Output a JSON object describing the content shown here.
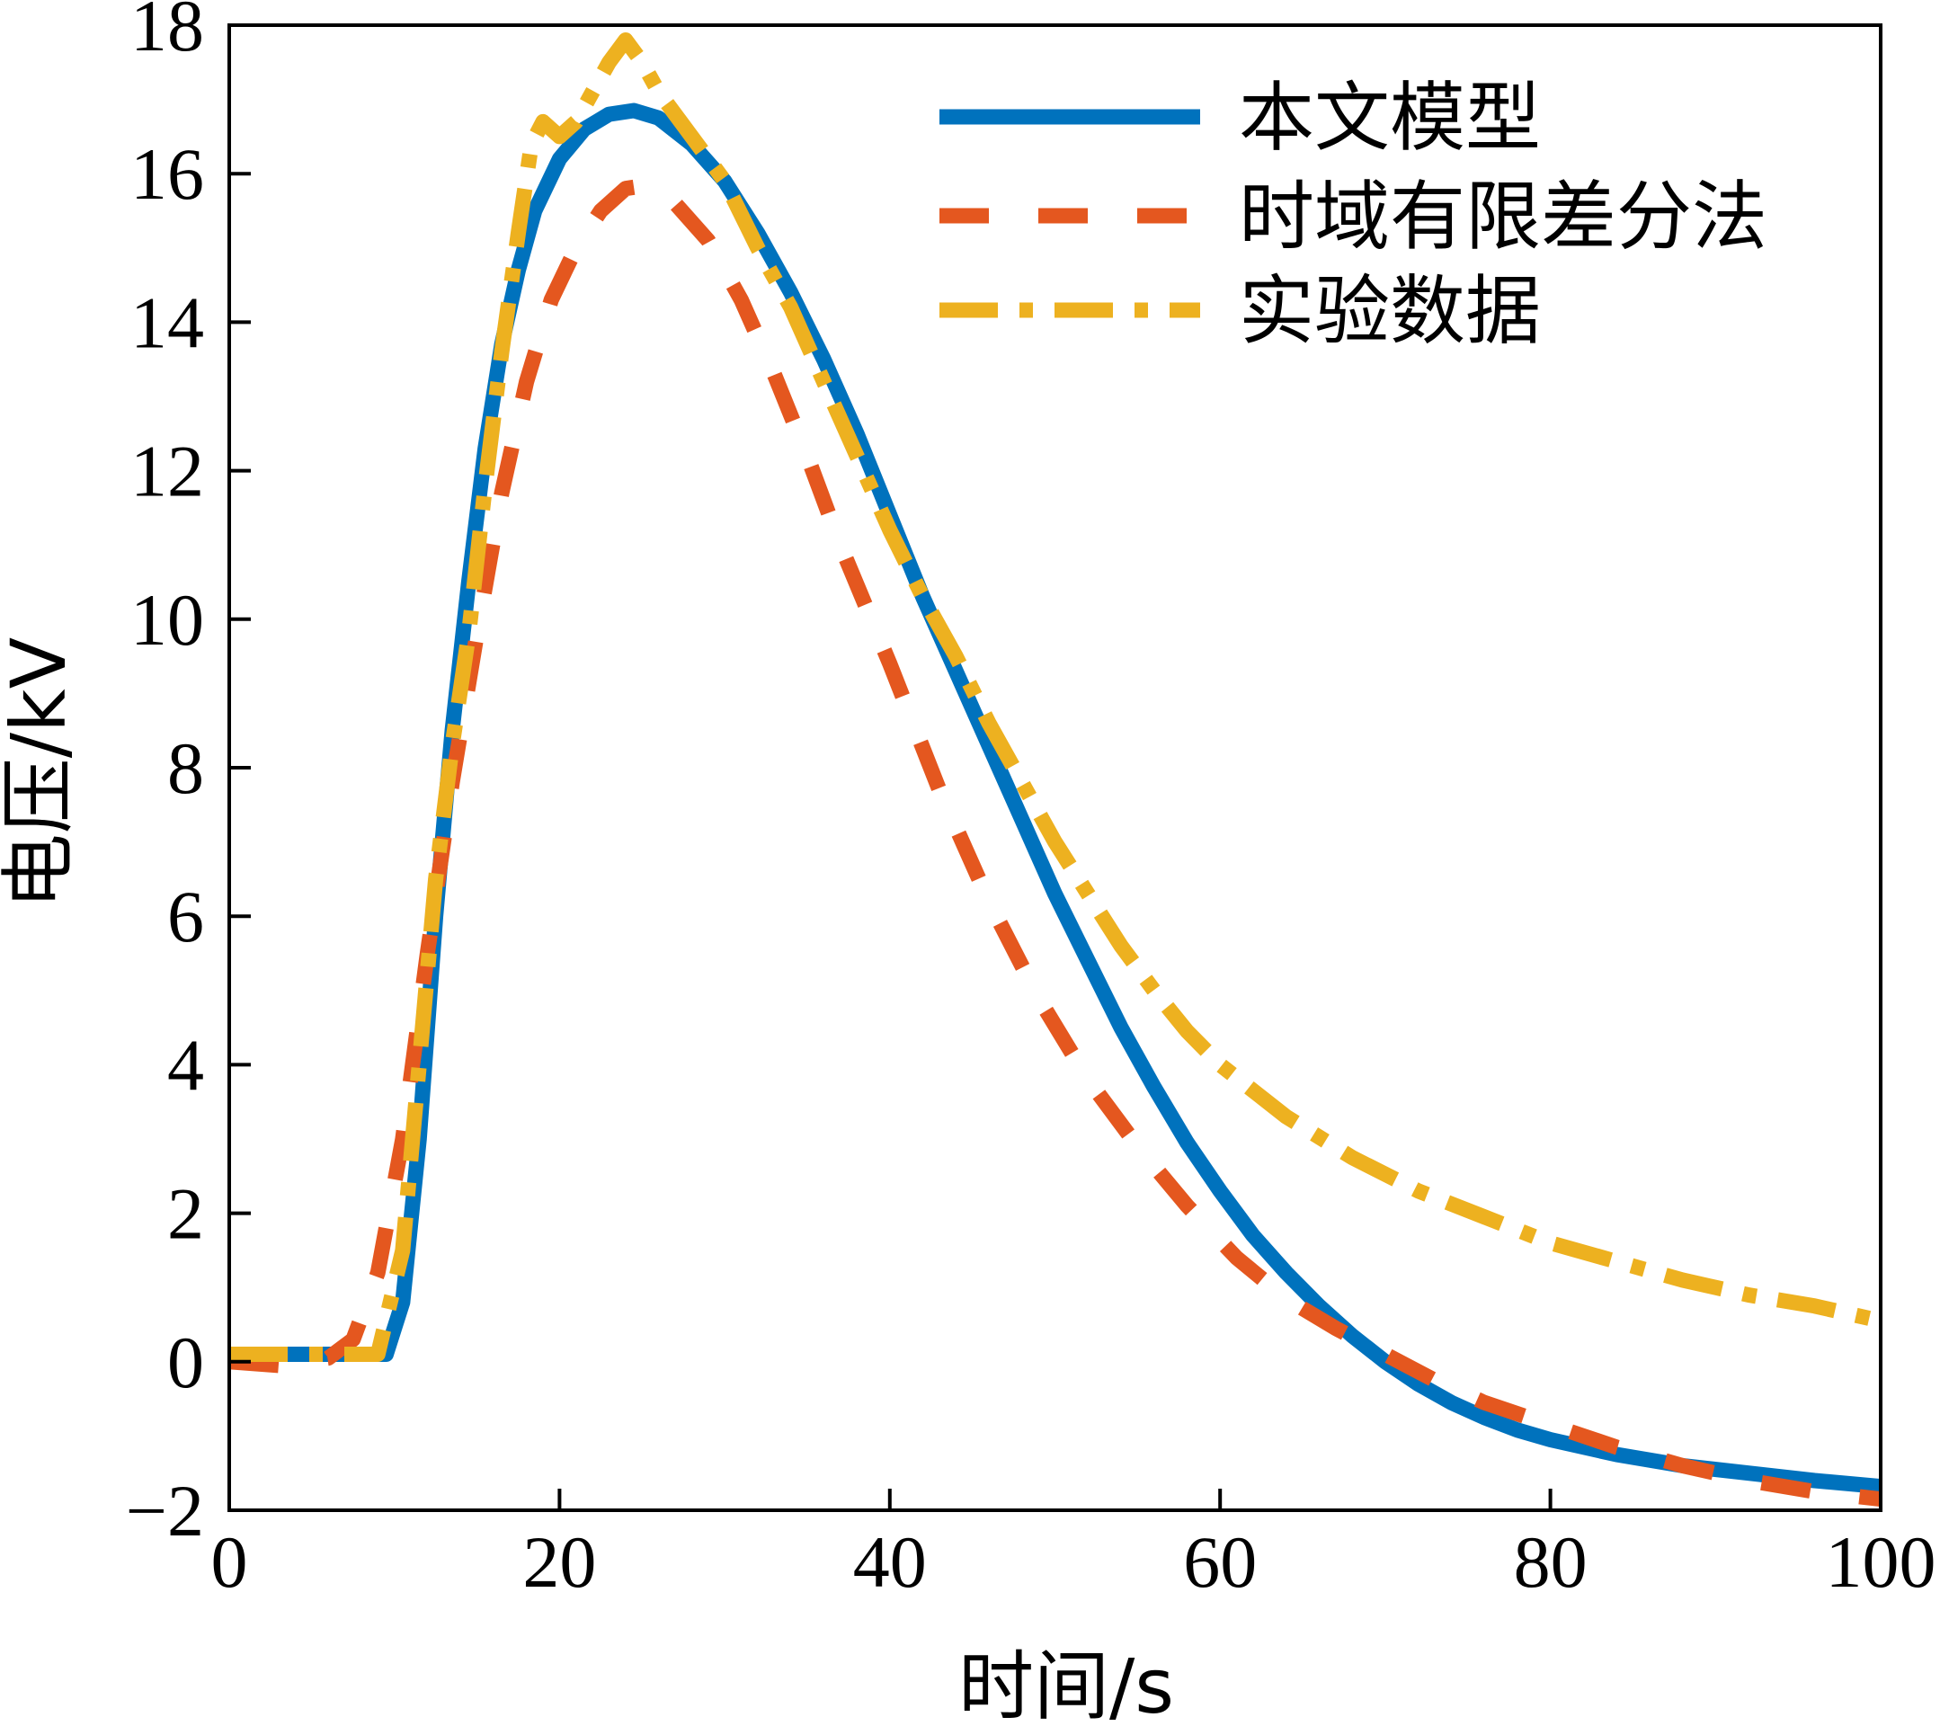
{
  "chart_data": {
    "type": "line",
    "title": "",
    "xlabel": "时间/s",
    "ylabel": "电压/kV",
    "xlim": [
      0,
      100
    ],
    "ylim": [
      -2,
      18
    ],
    "x_ticks": [
      "0",
      "20",
      "40",
      "60",
      "80",
      "100"
    ],
    "y_ticks": [
      "−2",
      "0",
      "2",
      "4",
      "6",
      "8",
      "10",
      "12",
      "14",
      "16",
      "18"
    ],
    "grid": false,
    "legend_position": "top-right",
    "series": [
      {
        "name": "本文模型",
        "color": "#0072BD",
        "style": "solid",
        "points": [
          [
            0,
            0.1
          ],
          [
            9.5,
            0.1
          ],
          [
            10.5,
            0.8
          ],
          [
            11.5,
            3
          ],
          [
            12.5,
            6
          ],
          [
            13.5,
            8.5
          ],
          [
            14.5,
            10.5
          ],
          [
            15.5,
            12.3
          ],
          [
            16.5,
            13.7
          ],
          [
            17.5,
            14.7
          ],
          [
            18.5,
            15.5
          ],
          [
            20,
            16.2
          ],
          [
            21.5,
            16.6
          ],
          [
            23,
            16.8
          ],
          [
            24.5,
            16.85
          ],
          [
            26,
            16.75
          ],
          [
            28,
            16.4
          ],
          [
            30,
            15.9
          ],
          [
            32,
            15.2
          ],
          [
            34,
            14.4
          ],
          [
            36,
            13.5
          ],
          [
            38,
            12.5
          ],
          [
            40,
            11.4
          ],
          [
            42,
            10.3
          ],
          [
            44,
            9.3
          ],
          [
            46,
            8.3
          ],
          [
            48,
            7.3
          ],
          [
            50,
            6.3
          ],
          [
            52,
            5.4
          ],
          [
            54,
            4.5
          ],
          [
            56,
            3.7
          ],
          [
            58,
            2.95
          ],
          [
            60,
            2.3
          ],
          [
            62,
            1.7
          ],
          [
            64,
            1.2
          ],
          [
            66,
            0.75
          ],
          [
            68,
            0.35
          ],
          [
            70,
            0.0
          ],
          [
            72,
            -0.3
          ],
          [
            74,
            -0.55
          ],
          [
            76,
            -0.75
          ],
          [
            78,
            -0.92
          ],
          [
            80,
            -1.05
          ],
          [
            84,
            -1.25
          ],
          [
            88,
            -1.4
          ],
          [
            92,
            -1.5
          ],
          [
            96,
            -1.6
          ],
          [
            100,
            -1.68
          ]
        ]
      },
      {
        "name": "时域有限差分法",
        "color": "#E4571F",
        "style": "dashed",
        "points": [
          [
            0,
            0
          ],
          [
            3,
            -0.05
          ],
          [
            6,
            0.05
          ],
          [
            7.5,
            0.3
          ],
          [
            9,
            1.2
          ],
          [
            10.5,
            3
          ],
          [
            12,
            5.5
          ],
          [
            13.5,
            7.8
          ],
          [
            15,
            9.8
          ],
          [
            16.5,
            11.7
          ],
          [
            18,
            13.2
          ],
          [
            19.5,
            14.3
          ],
          [
            21,
            15.0
          ],
          [
            22.5,
            15.5
          ],
          [
            24,
            15.8
          ],
          [
            25.5,
            15.85
          ],
          [
            27,
            15.6
          ],
          [
            29,
            15.1
          ],
          [
            31,
            14.3
          ],
          [
            33,
            13.3
          ],
          [
            35,
            12.2
          ],
          [
            37,
            11.0
          ],
          [
            40,
            9.4
          ],
          [
            43,
            7.7
          ],
          [
            46,
            6.2
          ],
          [
            49,
            4.9
          ],
          [
            52,
            3.8
          ],
          [
            55,
            2.9
          ],
          [
            58,
            2.1
          ],
          [
            61,
            1.4
          ],
          [
            64,
            0.85
          ],
          [
            67,
            0.45
          ],
          [
            70,
            0.1
          ],
          [
            73,
            -0.25
          ],
          [
            76,
            -0.55
          ],
          [
            80,
            -0.85
          ],
          [
            84,
            -1.15
          ],
          [
            88,
            -1.4
          ],
          [
            92,
            -1.6
          ],
          [
            96,
            -1.75
          ],
          [
            100,
            -1.85
          ]
        ]
      },
      {
        "name": "实验数据",
        "color": "#EDB120",
        "style": "dashdot",
        "points": [
          [
            0,
            0.1
          ],
          [
            9,
            0.1
          ],
          [
            10.5,
            1.5
          ],
          [
            11.5,
            4
          ],
          [
            12.5,
            6.5
          ],
          [
            13.5,
            8.3
          ],
          [
            14.5,
            9.8
          ],
          [
            15.5,
            11.8
          ],
          [
            16.5,
            13.6
          ],
          [
            17.5,
            15.2
          ],
          [
            18.3,
            16.4
          ],
          [
            19,
            16.7
          ],
          [
            20,
            16.5
          ],
          [
            21,
            16.7
          ],
          [
            22,
            17.1
          ],
          [
            23,
            17.5
          ],
          [
            24,
            17.8
          ],
          [
            25,
            17.5
          ],
          [
            26,
            17.1
          ],
          [
            28,
            16.5
          ],
          [
            30,
            15.9
          ],
          [
            32,
            15.0
          ],
          [
            34,
            14.2
          ],
          [
            36,
            13.2
          ],
          [
            38,
            12.2
          ],
          [
            40,
            11.2
          ],
          [
            42,
            10.3
          ],
          [
            44,
            9.5
          ],
          [
            46,
            8.6
          ],
          [
            48,
            7.8
          ],
          [
            50,
            7.0
          ],
          [
            52,
            6.3
          ],
          [
            54,
            5.6
          ],
          [
            56,
            5.0
          ],
          [
            58,
            4.45
          ],
          [
            60,
            4.0
          ],
          [
            64,
            3.3
          ],
          [
            68,
            2.75
          ],
          [
            72,
            2.3
          ],
          [
            76,
            1.95
          ],
          [
            80,
            1.6
          ],
          [
            84,
            1.35
          ],
          [
            88,
            1.1
          ],
          [
            92,
            0.9
          ],
          [
            96,
            0.75
          ],
          [
            100,
            0.55
          ]
        ]
      }
    ]
  }
}
